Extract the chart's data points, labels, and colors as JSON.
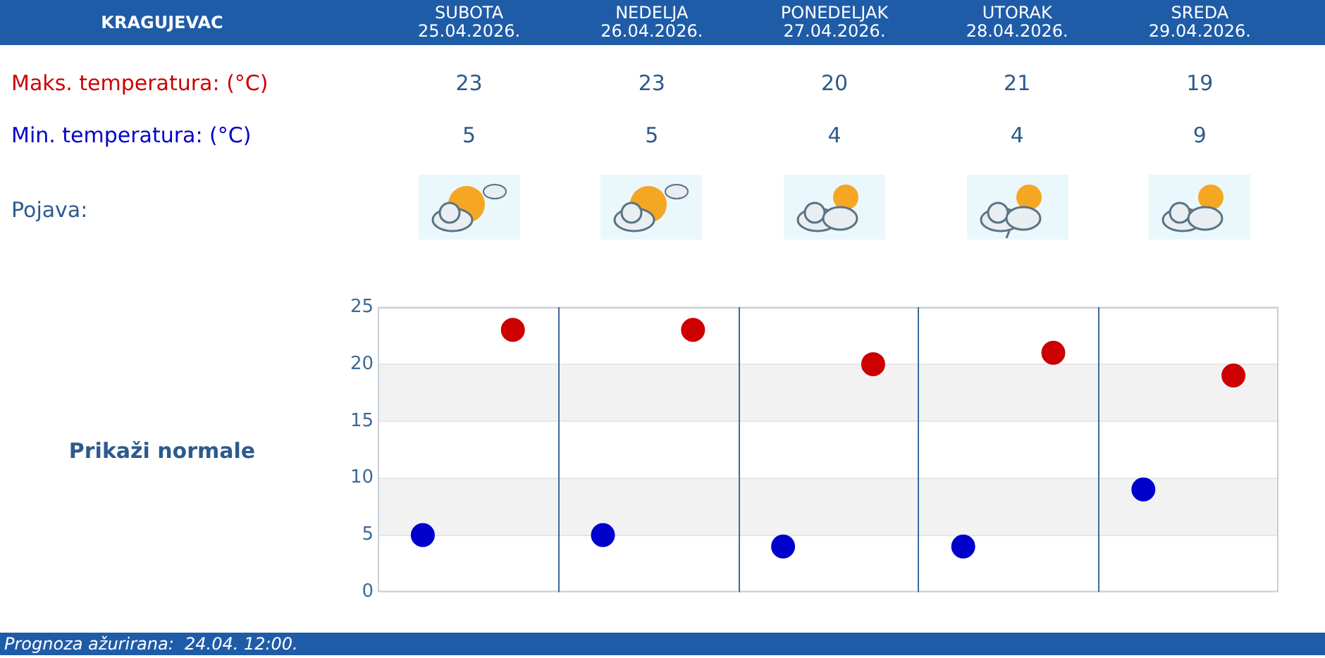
{
  "chart_data": {
    "type": "scatter",
    "title": "KRAGUJEVAC",
    "categories": [
      null,
      null,
      null,
      null,
      null
    ],
    "series": [
      {
        "name": "Min. temperatura: (°C)",
        "color": "#0000cc",
        "values": [
          5,
          5,
          4,
          4,
          9
        ]
      },
      {
        "name": "Maks. temperatura: (°C)",
        "color": "#cc0000",
        "values": [
          23,
          23,
          20,
          21,
          19
        ]
      }
    ],
    "ylim": [
      0,
      25
    ],
    "yticks": [
      0,
      5,
      10,
      15,
      20,
      25
    ],
    "grid": "y",
    "legend": false,
    "marker": "circle",
    "data_labels": true,
    "bands": [
      {
        "axis": "y",
        "from": 5,
        "to": 10,
        "color": "#f2f2f2"
      },
      {
        "axis": "y",
        "from": 15,
        "to": 20,
        "color": "#f2f2f2"
      }
    ],
    "annotations": [
      "SUBOTA\n25.04.2026.",
      "NEDELJA\n26.04.2026.",
      "PONEDELJAK\n27.04.2026.",
      "UTORAK\n28.04.2026.",
      "SREDA\n29.04.2026.",
      "Pojava:",
      "Prikaži normale",
      "Prognoza ažurirana:  24.04. 12:00."
    ]
  }
}
